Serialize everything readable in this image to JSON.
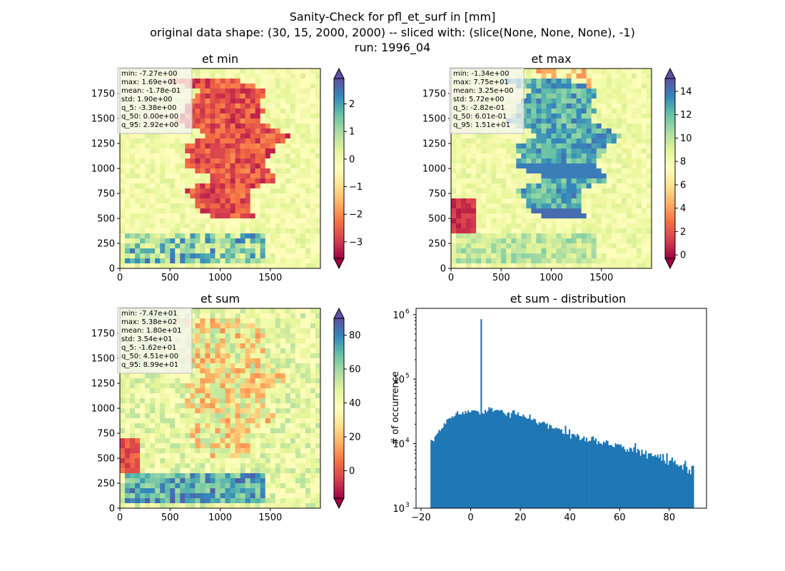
{
  "figure": {
    "title_lines": [
      "Sanity-Check for pfl_et_surf in [mm]",
      "original data shape: (30, 15, 2000, 2000) -- sliced with: (slice(None, None, None), -1)",
      "run: 1996_04"
    ]
  },
  "chart_data": [
    {
      "type": "heatmap",
      "title": "et min",
      "xlim": [
        0,
        2000
      ],
      "ylim": [
        0,
        2000
      ],
      "x_ticks": [
        0,
        500,
        1000,
        1500
      ],
      "y_ticks": [
        0,
        250,
        500,
        750,
        1000,
        1250,
        1500,
        1750
      ],
      "colormap": "Spectral",
      "colorbar": {
        "range": [
          -3.6,
          2.92
        ],
        "ticks": [
          -3,
          -2,
          -1,
          0,
          1,
          2
        ],
        "extend": "both"
      },
      "stats_box": [
        "min: -7.27e+00",
        "max: 1.69e+01",
        "mean: -1.78e-01",
        "std: 1.90e+00",
        "q_5: -3.38e+00",
        "q_50: 0.00e+00",
        "q_95: 2.92e+00"
      ]
    },
    {
      "type": "heatmap",
      "title": "et max",
      "xlim": [
        0,
        2000
      ],
      "ylim": [
        0,
        2000
      ],
      "x_ticks": [
        0,
        500,
        1000,
        1500
      ],
      "y_ticks": [
        0,
        250,
        500,
        750,
        1000,
        1250,
        1500,
        1750
      ],
      "colormap": "Spectral",
      "colorbar": {
        "range": [
          -0.3,
          15.1
        ],
        "ticks": [
          0,
          2,
          4,
          6,
          8,
          10,
          12,
          14
        ],
        "extend": "both"
      },
      "stats_box": [
        "min: -1.34e+00",
        "max: 7.75e+01",
        "mean: 3.25e+00",
        "std: 5.72e+00",
        "q_5: -2.82e-01",
        "q_50: 6.01e-01",
        "q_95: 1.51e+01"
      ]
    },
    {
      "type": "heatmap",
      "title": "et sum",
      "xlim": [
        0,
        2000
      ],
      "ylim": [
        0,
        2000
      ],
      "x_ticks": [
        0,
        500,
        1000,
        1500
      ],
      "y_ticks": [
        0,
        250,
        500,
        750,
        1000,
        1250,
        1500,
        1750
      ],
      "colormap": "Spectral",
      "colorbar": {
        "range": [
          -16.2,
          89.9
        ],
        "ticks": [
          0,
          20,
          40,
          60,
          80
        ],
        "extend": "both"
      },
      "stats_box": [
        "min: -7.47e+01",
        "max: 5.38e+02",
        "mean: 1.80e+01",
        "std: 3.54e+01",
        "q_5: -1.62e+01",
        "q_50: 4.51e+00",
        "q_95: 8.99e+01"
      ]
    },
    {
      "type": "bar",
      "title": "et sum - distribution",
      "ylabel": "# of occurrence",
      "xlim": [
        -22,
        95
      ],
      "ylim": [
        1000,
        1250000
      ],
      "yscale": "log",
      "x_ticks": [
        -20,
        0,
        20,
        40,
        60,
        80
      ],
      "y_ticks": [
        1000,
        10000,
        100000,
        1000000
      ],
      "y_tick_labels": [
        {
          "base": "10",
          "exp": "3"
        },
        {
          "base": "10",
          "exp": "4"
        },
        {
          "base": "10",
          "exp": "5"
        },
        {
          "base": "10",
          "exp": "6"
        }
      ],
      "bar_color": "#1f77b4",
      "bin_range": [
        -16.2,
        89.9
      ],
      "bin_count": 200,
      "bin_counts": [
        11430,
        11160,
        10840,
        12950,
        13780,
        14610,
        16310,
        15740,
        16950,
        17800,
        20740,
        19980,
        23630,
        24300,
        24860,
        24630,
        26490,
        25580,
        26930,
        29550,
        31730,
        28260,
        28590,
        28570,
        31110,
        28590,
        32070,
        29590,
        32760,
        30600,
        30690,
        32720,
        32660,
        32990,
        32260,
        32160,
        30810,
        28230,
        850000,
        29800,
        29010,
        33520,
        30740,
        32340,
        36810,
        35000,
        35840,
        31220,
        32610,
        33250,
        33180,
        33420,
        32320,
        33430,
        32450,
        30220,
        28650,
        26980,
        29770,
        30680,
        25140,
        29650,
        32650,
        32890,
        28560,
        27930,
        30560,
        26950,
        26800,
        26330,
        28220,
        26190,
        25160,
        24200,
        24630,
        28190,
        23590,
        23240,
        24450,
        23840,
        20950,
        19750,
        21570,
        20670,
        21180,
        21850,
        21510,
        20060,
        20700,
        17010,
        19670,
        19090,
        17370,
        17080,
        17230,
        17740,
        17060,
        17290,
        16450,
        16670,
        14360,
        14120,
        18930,
        14070,
        13930,
        16620,
        11980,
        14240,
        14040,
        13710,
        12800,
        14150,
        13340,
        11340,
        11640,
        12160,
        12950,
        10900,
        12410,
        10620,
        11050,
        11090,
        12710,
        12980,
        11190,
        12090,
        9730,
        10960,
        10160,
        10030,
        9680,
        10780,
        10310,
        11220,
        11050,
        9460,
        9520,
        9540,
        8960,
        8830,
        10140,
        9650,
        9900,
        9500,
        9770,
        8790,
        9080,
        8180,
        7480,
        8190,
        7510,
        8710,
        8420,
        7500,
        8790,
        10160,
        7250,
        8290,
        7840,
        6520,
        8070,
        6950,
        6840,
        7790,
        5890,
        7090,
        6960,
        7160,
        6380,
        6410,
        6720,
        6260,
        6770,
        6010,
        6870,
        5430,
        6950,
        5460,
        4920,
        7090,
        4680,
        5410,
        5550,
        6120,
        5170,
        5490,
        4780,
        4740,
        4430,
        4600,
        4600,
        3950,
        4810,
        5440,
        4380,
        3470,
        3940,
        3350,
        4510,
        4540
      ]
    }
  ]
}
